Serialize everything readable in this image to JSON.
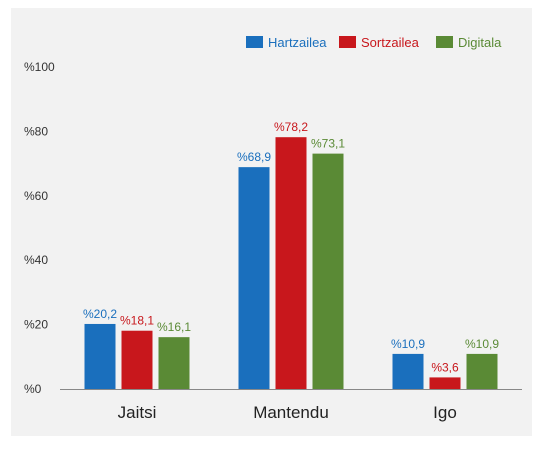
{
  "chart_data": {
    "type": "bar",
    "categories": [
      "Jaitsi",
      "Mantendu",
      "Igo"
    ],
    "series": [
      {
        "name": "Hartzailea",
        "color": "#1a6fbd",
        "values": [
          20.2,
          68.9,
          10.9
        ],
        "labels": [
          "%20,2",
          "%68,9",
          "%10,9"
        ]
      },
      {
        "name": "Sortzailea",
        "color": "#c8171c",
        "values": [
          18.1,
          78.2,
          3.6
        ],
        "labels": [
          "%18,1",
          "%78,2",
          "%3,6"
        ]
      },
      {
        "name": "Digitala",
        "color": "#5a8a35",
        "values": [
          16.1,
          73.1,
          10.9
        ],
        "labels": [
          "%16,1",
          "%73,1",
          "%10,9"
        ]
      }
    ],
    "yticks": [
      0,
      20,
      40,
      60,
      80,
      100
    ],
    "ytick_labels": [
      "%0",
      "%20",
      "%40",
      "%60",
      "%80",
      "%100"
    ],
    "ylim": [
      0,
      100
    ],
    "grid": false,
    "legend": "top-right",
    "title": "",
    "xlabel": "",
    "ylabel": ""
  }
}
